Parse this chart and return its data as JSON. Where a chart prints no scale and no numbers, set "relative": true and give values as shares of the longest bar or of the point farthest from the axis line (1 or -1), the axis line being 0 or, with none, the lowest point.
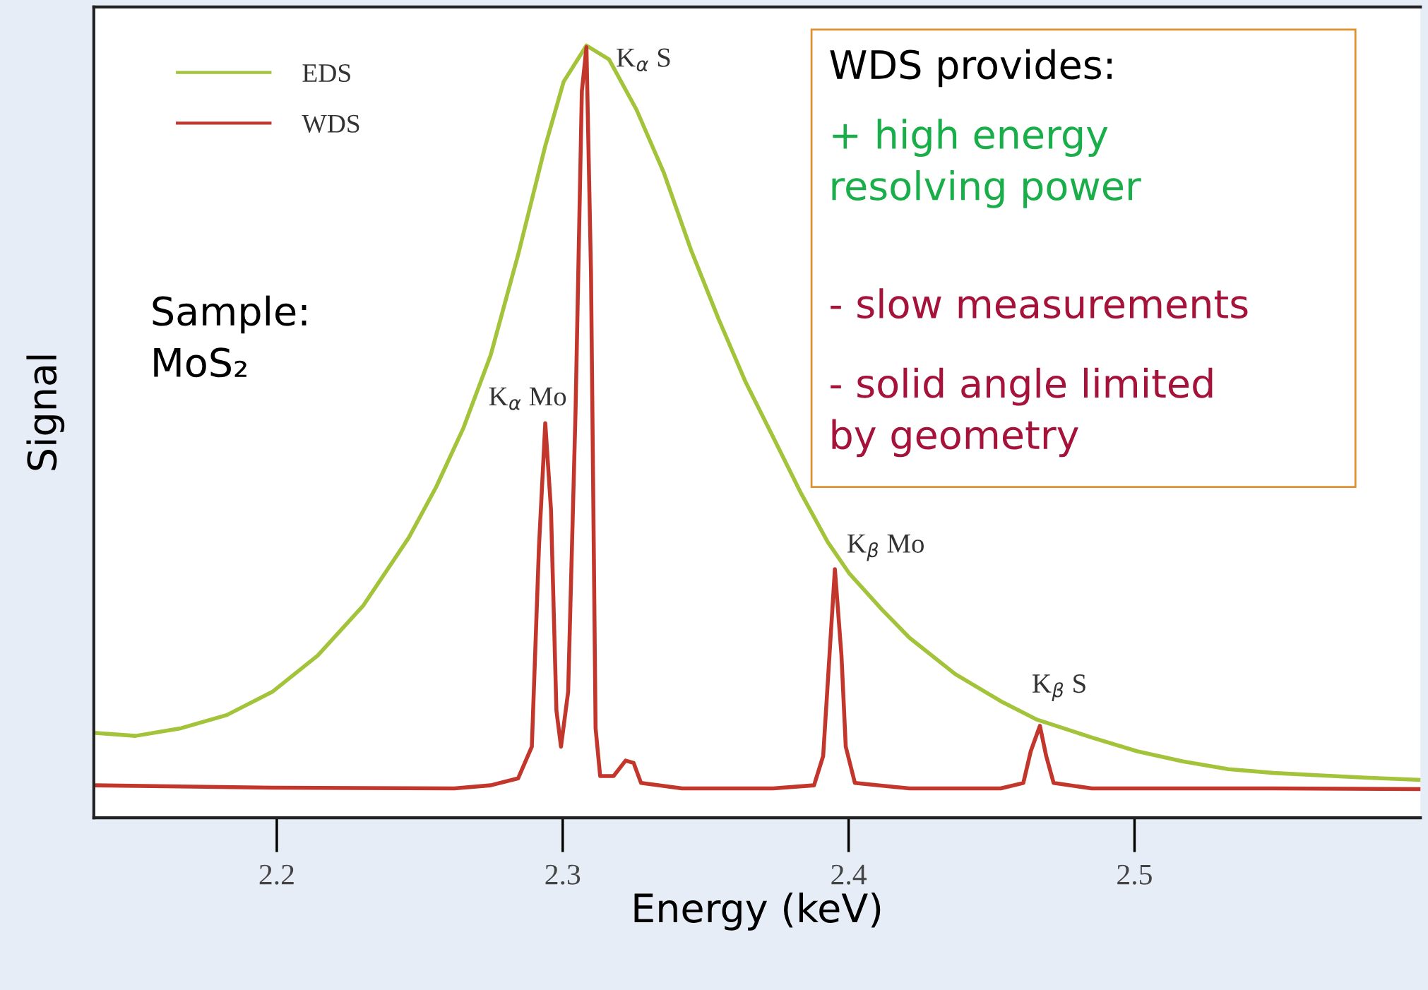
{
  "chart_data": {
    "type": "line",
    "relative": true,
    "xlabel": "Energy (keV)",
    "ylabel": "Signal",
    "xlim": [
      2.136,
      2.6
    ],
    "xticks": [
      2.2,
      2.3,
      2.4,
      2.5
    ],
    "grid": false,
    "legend": "top left",
    "marker": "none",
    "line_style": "solid",
    "tick_labels": "x",
    "series": [
      {
        "name": "EDS",
        "color": "#a3c43a",
        "x": [
          2.136,
          2.1506,
          2.1666,
          2.1825,
          2.1984,
          2.2143,
          2.2303,
          2.2462,
          2.2557,
          2.2653,
          2.2748,
          2.2844,
          2.2939,
          2.3003,
          2.3083,
          2.3162,
          2.3258,
          2.3354,
          2.3449,
          2.3545,
          2.364,
          2.3736,
          2.3831,
          2.3927,
          2.4003,
          2.4118,
          2.4213,
          2.4373,
          2.4532,
          2.4659,
          2.485,
          2.501,
          2.5169,
          2.5328,
          2.5487,
          2.5646,
          2.5806,
          2.6
        ],
        "values": [
          0.11,
          0.106,
          0.116,
          0.133,
          0.163,
          0.21,
          0.275,
          0.363,
          0.428,
          0.505,
          0.599,
          0.729,
          0.87,
          0.953,
          1,
          0.982,
          0.917,
          0.835,
          0.735,
          0.646,
          0.564,
          0.493,
          0.422,
          0.357,
          0.316,
          0.269,
          0.233,
          0.186,
          0.151,
          0.127,
          0.104,
          0.086,
          0.073,
          0.063,
          0.058,
          0.055,
          0.052,
          0.049
        ]
      },
      {
        "name": "WDS",
        "color": "#c2362c",
        "x": [
          2.136,
          2.1984,
          2.2621,
          2.2748,
          2.2844,
          2.2892,
          2.2917,
          2.2939,
          2.2959,
          2.2978,
          2.2994,
          2.3019,
          2.3045,
          2.3067,
          2.3083,
          2.3099,
          2.3115,
          2.3131,
          2.3178,
          2.322,
          2.3248,
          2.3274,
          2.3417,
          2.3736,
          2.3879,
          2.3911,
          2.3933,
          2.3952,
          2.3975,
          2.399,
          2.4022,
          2.4213,
          2.4532,
          2.4611,
          2.4637,
          2.4669,
          2.4691,
          2.4717,
          2.485,
          2.5487,
          2.6
        ],
        "values": [
          0.042,
          0.039,
          0.038,
          0.042,
          0.051,
          0.092,
          0.351,
          0.511,
          0.399,
          0.139,
          0.092,
          0.163,
          0.528,
          0.941,
          0.998,
          0.705,
          0.116,
          0.054,
          0.054,
          0.074,
          0.071,
          0.045,
          0.038,
          0.038,
          0.042,
          0.08,
          0.21,
          0.322,
          0.21,
          0.092,
          0.045,
          0.038,
          0.038,
          0.045,
          0.086,
          0.119,
          0.08,
          0.045,
          0.038,
          0.038,
          0.037
        ]
      }
    ],
    "annotations": [
      "Sample:\nMoS₂",
      "WDS provides:",
      "+ high energy\nresolving power",
      "- slow measurements",
      "- solid angle limited\nby geometry",
      {
        "text": "K$_{α}$ S",
        "x": 2.3083,
        "y": 1
      },
      {
        "text": "K$_{α}$ Mo",
        "x": 2.2939,
        "y": 0.511
      },
      {
        "text": "K$_{β}$ Mo",
        "x": 2.3952,
        "y": 0.322
      },
      {
        "text": "K$_{β}$ S",
        "x": 2.4669,
        "y": 0.119
      }
    ]
  }
}
